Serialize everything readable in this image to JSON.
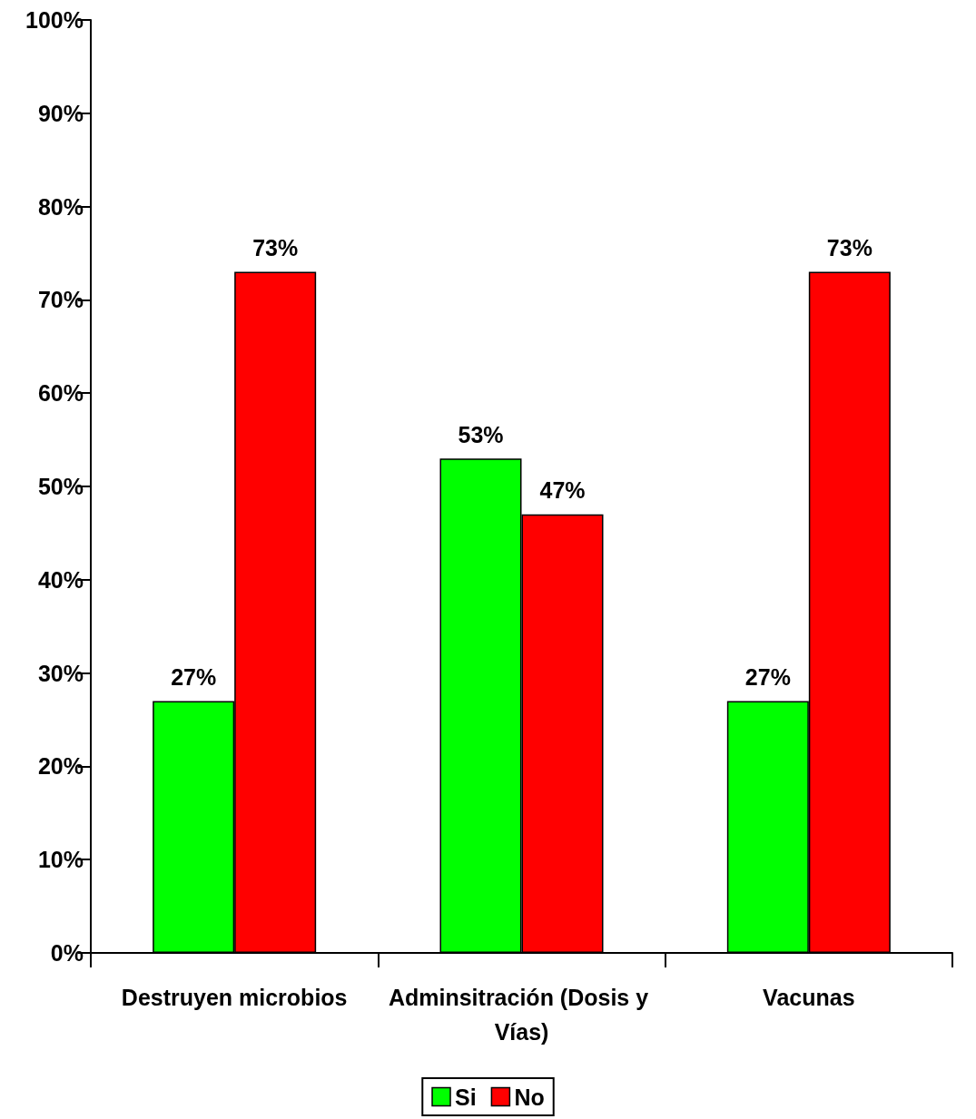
{
  "chart_data": {
    "type": "bar",
    "categories": [
      "Destruyen microbios",
      "Adminsitración (Dosis y Vías)",
      "Vacunas"
    ],
    "series": [
      {
        "name": "Si",
        "color": "#00ff00",
        "values": [
          27,
          53,
          27
        ],
        "value_labels": [
          "27%",
          "53%",
          "27%"
        ]
      },
      {
        "name": "No",
        "color": "#ff0000",
        "values": [
          73,
          47,
          73
        ],
        "value_labels": [
          "73%",
          "47%",
          "73%"
        ]
      }
    ],
    "ylim": [
      0,
      100
    ],
    "yticks": [
      {
        "value": 0,
        "label": "0%"
      },
      {
        "value": 10,
        "label": "10%"
      },
      {
        "value": 20,
        "label": "20%"
      },
      {
        "value": 30,
        "label": "30%"
      },
      {
        "value": 40,
        "label": "40%"
      },
      {
        "value": 50,
        "label": "50%"
      },
      {
        "value": 60,
        "label": "60%"
      },
      {
        "value": 70,
        "label": "70%"
      },
      {
        "value": 80,
        "label": "80%"
      },
      {
        "value": 90,
        "label": "90%"
      },
      {
        "value": 100,
        "label": "100%"
      }
    ],
    "grid": false,
    "legend": "bottom"
  }
}
